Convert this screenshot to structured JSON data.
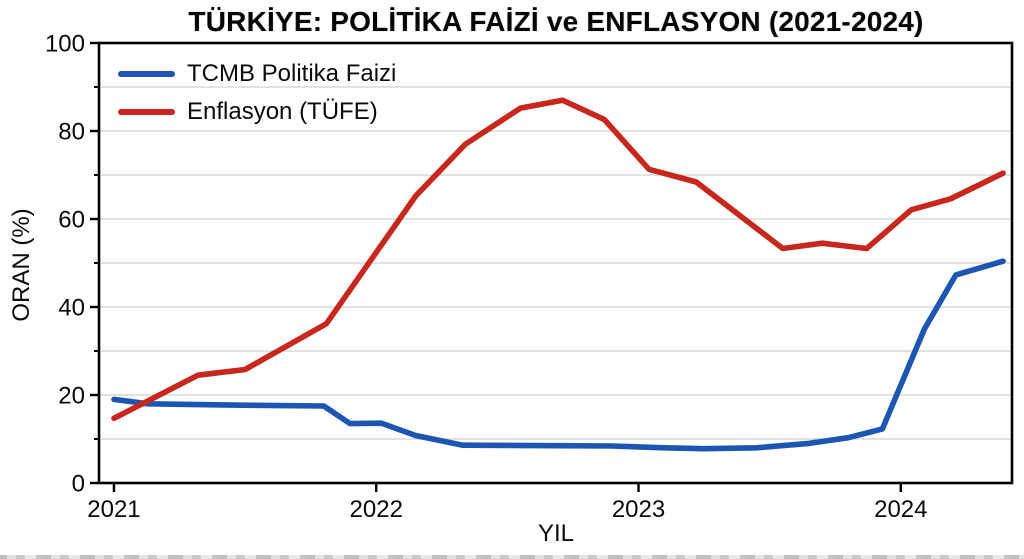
{
  "figure": {
    "title": "TÜRKİYE: POLİTİKA FAİZİ ve ENFLASYON (2021-2024)"
  },
  "chart_data": {
    "type": "line",
    "title": "TÜRKİYE: POLİTİKA FAİZİ ve ENFLASYON (2021-2024)",
    "xlabel": "YIL",
    "ylabel": "ORAN (%)",
    "xlim": [
      2020.943,
      2024.424
    ],
    "ylim": [
      0,
      100
    ],
    "x_ticks": [
      2021,
      2022,
      2023,
      2024
    ],
    "y_ticks_major": [
      0,
      20,
      40,
      60,
      80,
      100
    ],
    "y_ticks_minor": [
      10,
      30,
      50,
      70,
      90
    ],
    "grid": "horizontal-every-10",
    "grid_color": "#d0d0d0",
    "frame_color": "#000000",
    "legend_position": "upper-left-no-frame",
    "series": [
      {
        "name": "TCMB Politika Faizi",
        "color": "#1d56b2",
        "x": [
          2021.0,
          2021.13,
          2021.45,
          2021.8,
          2021.9,
          2022.02,
          2022.15,
          2022.33,
          2022.6,
          2022.9,
          2023.1,
          2023.25,
          2023.45,
          2023.65,
          2023.8,
          2023.93,
          2024.09,
          2024.21,
          2024.39
        ],
        "values": [
          19.0,
          18.0,
          17.7,
          17.5,
          13.5,
          13.6,
          10.8,
          8.6,
          8.5,
          8.4,
          8.0,
          7.8,
          8.0,
          9.0,
          10.3,
          12.3,
          35.0,
          47.3,
          50.4
        ]
      },
      {
        "name": "Enflasyon (TÜFE)",
        "color": "#c8271e",
        "x": [
          2021.0,
          2021.32,
          2021.5,
          2021.81,
          2022.15,
          2022.34,
          2022.55,
          2022.71,
          2022.87,
          2023.04,
          2023.22,
          2023.55,
          2023.7,
          2023.87,
          2024.04,
          2024.19,
          2024.39
        ],
        "values": [
          14.7,
          24.5,
          25.8,
          36.2,
          65.2,
          77.0,
          85.2,
          87.0,
          82.6,
          71.3,
          68.4,
          53.3,
          54.5,
          53.3,
          62.1,
          64.6,
          70.4
        ]
      }
    ]
  }
}
